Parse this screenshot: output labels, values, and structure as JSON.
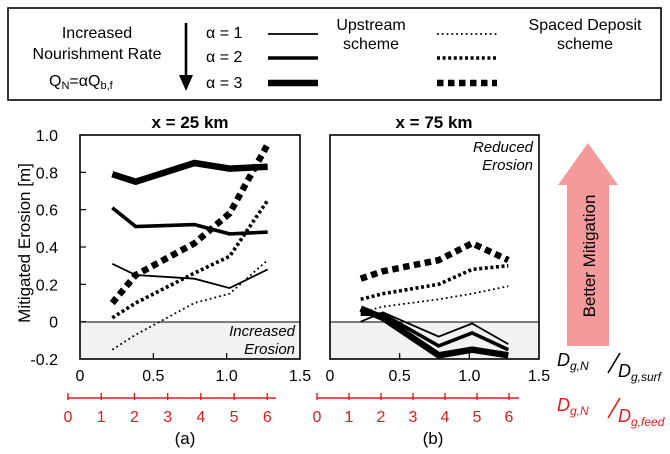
{
  "legend": {
    "rate_title_line1": "Increased",
    "rate_title_line2": "Nourishment Rate",
    "formula_q": "Q",
    "formula_n": "N",
    "formula_mid": "=αQ",
    "formula_bf": "b,f",
    "alpha_items": [
      {
        "label": "α = 1",
        "weight": "thin"
      },
      {
        "label": "α = 2",
        "weight": "medium"
      },
      {
        "label": "α = 3",
        "weight": "thick"
      }
    ],
    "upstream_line1": "Upstream",
    "upstream_line2": "scheme",
    "spaced_line1": "Spaced Deposit",
    "spaced_line2": "scheme"
  },
  "y_axis_label": "Mitigated Erosion [m]",
  "better_mitigation_label": "Better Mitigation",
  "colors": {
    "axis": "#000000",
    "secondary_axis": "#e01b1b",
    "arrow_fill": "#f59a9a",
    "shade": "#f2f2f2"
  },
  "secondary_axis_labels": {
    "black_main": "D",
    "black_main_sub": "g,N",
    "black_den": "D",
    "black_den_sub": "g,surf",
    "red_main": "D",
    "red_main_sub": "g,N",
    "red_den": "D",
    "red_den_sub": "g,feed"
  },
  "chart_data": [
    {
      "type": "line",
      "panel": "(a)",
      "title": "x = 25 km",
      "xlim": [
        0,
        1.5
      ],
      "ylim": [
        -0.2,
        1.0
      ],
      "x_ticks": [
        "0",
        "0.5",
        "1.0",
        "1.5"
      ],
      "y_ticks": [
        "-0.2",
        "0",
        "0.2",
        "0.4",
        "0.6",
        "0.8",
        "1.0"
      ],
      "red_ticks": [
        "0",
        "1",
        "2",
        "3",
        "4",
        "5",
        "6"
      ],
      "shaded_label_line1": "Increased",
      "shaded_label_line2": "Erosion",
      "x": [
        0.22,
        0.38,
        0.78,
        1.02,
        1.28
      ],
      "series": [
        {
          "scheme": "upstream",
          "alpha": 1,
          "values": [
            0.31,
            0.25,
            0.23,
            0.18,
            0.28
          ]
        },
        {
          "scheme": "upstream",
          "alpha": 2,
          "values": [
            0.61,
            0.51,
            0.52,
            0.47,
            0.48
          ]
        },
        {
          "scheme": "upstream",
          "alpha": 3,
          "values": [
            0.79,
            0.75,
            0.85,
            0.82,
            0.83
          ]
        },
        {
          "scheme": "spaced",
          "alpha": 1,
          "values": [
            -0.15,
            -0.07,
            0.1,
            0.15,
            0.33
          ]
        },
        {
          "scheme": "spaced",
          "alpha": 2,
          "values": [
            0.02,
            0.1,
            0.26,
            0.35,
            0.65
          ]
        },
        {
          "scheme": "spaced",
          "alpha": 3,
          "values": [
            0.1,
            0.25,
            0.42,
            0.58,
            0.95
          ]
        }
      ]
    },
    {
      "type": "line",
      "panel": "(b)",
      "title": "x = 75 km",
      "xlim": [
        0,
        1.5
      ],
      "ylim": [
        -0.2,
        1.0
      ],
      "x_ticks": [
        "0",
        "0.5",
        "1.0",
        "1.5"
      ],
      "red_ticks": [
        "0",
        "1",
        "2",
        "3",
        "4",
        "5",
        "6"
      ],
      "reduced_label_line1": "Reduced",
      "reduced_label_line2": "Erosion",
      "x": [
        0.22,
        0.38,
        0.78,
        1.02,
        1.28
      ],
      "series": [
        {
          "scheme": "upstream",
          "alpha": 1,
          "values": [
            0.0,
            0.05,
            -0.08,
            -0.01,
            -0.12
          ]
        },
        {
          "scheme": "upstream",
          "alpha": 2,
          "values": [
            0.04,
            0.04,
            -0.13,
            -0.06,
            -0.15
          ]
        },
        {
          "scheme": "upstream",
          "alpha": 3,
          "values": [
            0.07,
            0.02,
            -0.18,
            -0.15,
            -0.18
          ]
        },
        {
          "scheme": "spaced",
          "alpha": 1,
          "values": [
            0.05,
            0.08,
            0.12,
            0.15,
            0.19
          ]
        },
        {
          "scheme": "spaced",
          "alpha": 2,
          "values": [
            0.12,
            0.15,
            0.2,
            0.28,
            0.3
          ]
        },
        {
          "scheme": "spaced",
          "alpha": 3,
          "values": [
            0.23,
            0.27,
            0.33,
            0.42,
            0.33
          ]
        }
      ]
    }
  ]
}
